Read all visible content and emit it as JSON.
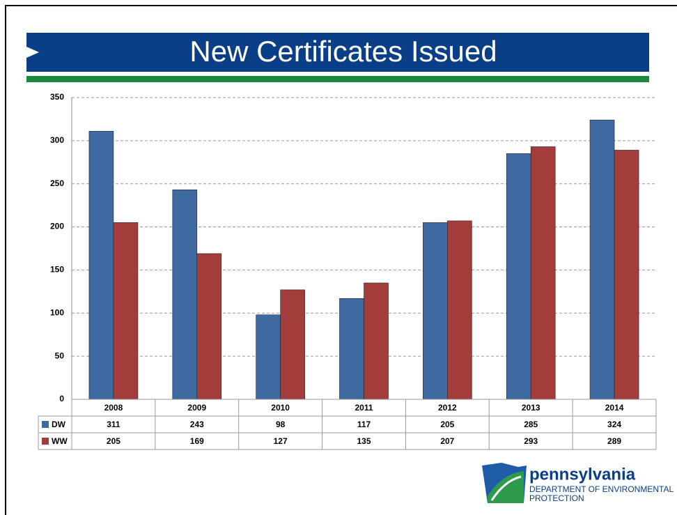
{
  "chart_data": {
    "type": "bar",
    "title": "New Certificates Issued",
    "categories": [
      "2008",
      "2009",
      "2010",
      "2011",
      "2012",
      "2013",
      "2014"
    ],
    "series": [
      {
        "name": "DW",
        "color": "#3e6aa1",
        "values": [
          311,
          243,
          98,
          117,
          205,
          285,
          324
        ]
      },
      {
        "name": "WW",
        "color": "#a33d3c",
        "values": [
          205,
          169,
          127,
          135,
          207,
          293,
          289
        ]
      }
    ],
    "ylim": [
      0,
      350
    ],
    "yticks": [
      0,
      50,
      100,
      150,
      200,
      250,
      300,
      350
    ],
    "grid": true
  },
  "logo": {
    "name": "pennsylvania",
    "department": [
      "DEPARTMENT OF ENVIRONMENTAL",
      "PROTECTION"
    ]
  }
}
